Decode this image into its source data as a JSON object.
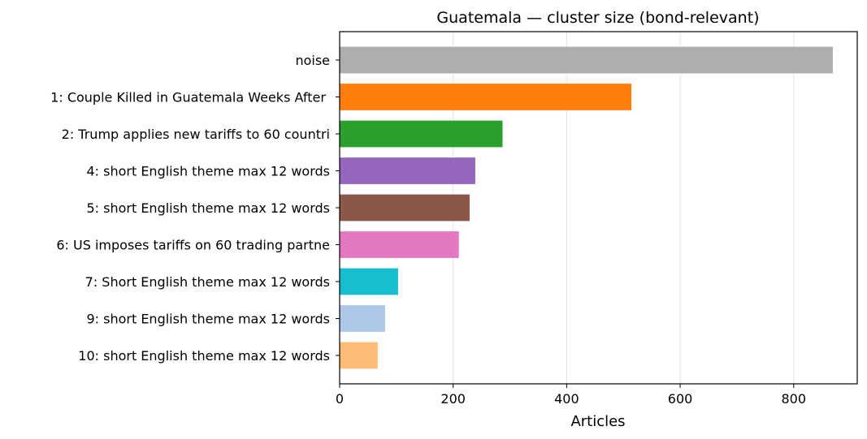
{
  "chart_data": {
    "type": "bar",
    "orientation": "horizontal",
    "title": "Guatemala — cluster size (bond-relevant)",
    "xlabel": "Articles",
    "ylabel": "",
    "xlim": [
      0,
      912
    ],
    "xticks": [
      0,
      200,
      400,
      600,
      800
    ],
    "grid": "x",
    "legend": "none",
    "categories": [
      "noise",
      "1: Couple Killed in Guatemala Weeks After ",
      "2: Trump applies new tariffs to 60 countri",
      "4: short English theme max 12 words",
      "5: short English theme max 12 words",
      "6: US imposes tariffs on 60 trading partne",
      "7: Short English theme max 12 words",
      "9: short English theme max 12 words",
      "10: short English theme max 12 words"
    ],
    "values": [
      869,
      514,
      287,
      239,
      229,
      210,
      103,
      80,
      67
    ],
    "colors": [
      "#aeaeae",
      "#ff7f0e",
      "#2ca02c",
      "#9467bd",
      "#8c564b",
      "#e377c2",
      "#17becf",
      "#aec7e8",
      "#ffbb78"
    ]
  }
}
